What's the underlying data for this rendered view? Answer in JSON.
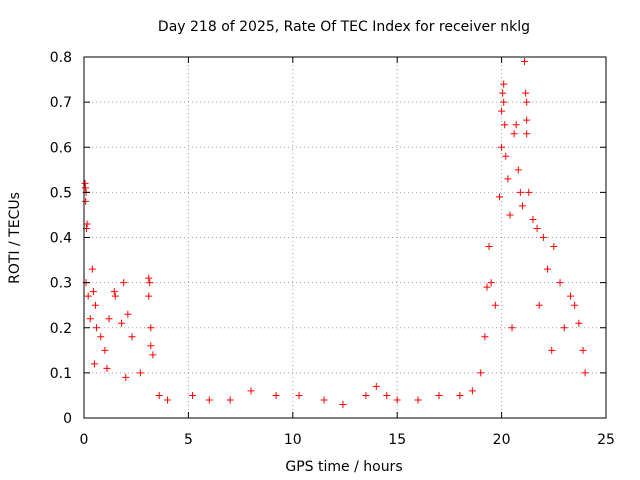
{
  "chart_data": {
    "type": "scatter",
    "title": "Day 218 of 2025, Rate Of TEC Index for receiver nklg",
    "xlabel": "GPS time / hours",
    "ylabel": "ROTI / TECUs",
    "xlim": [
      0,
      25
    ],
    "ylim": [
      0,
      0.8
    ],
    "xticks": [
      0,
      5,
      10,
      15,
      20,
      25
    ],
    "yticks": [
      0,
      0.1,
      0.2,
      0.3,
      0.4,
      0.5,
      0.6,
      0.7,
      0.8
    ],
    "xtick_labels": [
      "0",
      "5",
      "10",
      "15",
      "20",
      "25"
    ],
    "ytick_labels": [
      "0",
      "0.1",
      "0.2",
      "0.3",
      "0.4",
      "0.5",
      "0.6",
      "0.7",
      "0.8"
    ],
    "grid": true,
    "marker": "+",
    "color": "#ff0000",
    "series": [
      {
        "points": [
          [
            0.05,
            0.52
          ],
          [
            0.07,
            0.51
          ],
          [
            0.08,
            0.48
          ],
          [
            0.1,
            0.5
          ],
          [
            0.12,
            0.42
          ],
          [
            0.15,
            0.43
          ],
          [
            0.1,
            0.3
          ],
          [
            0.2,
            0.27
          ],
          [
            0.3,
            0.22
          ],
          [
            0.4,
            0.33
          ],
          [
            0.45,
            0.28
          ],
          [
            0.55,
            0.25
          ],
          [
            0.6,
            0.2
          ],
          [
            0.8,
            0.18
          ],
          [
            1.0,
            0.15
          ],
          [
            1.2,
            0.22
          ],
          [
            1.45,
            0.28
          ],
          [
            1.5,
            0.27
          ],
          [
            1.9,
            0.3
          ],
          [
            1.8,
            0.21
          ],
          [
            2.1,
            0.23
          ],
          [
            2.3,
            0.18
          ],
          [
            3.1,
            0.31
          ],
          [
            3.15,
            0.3
          ],
          [
            3.1,
            0.27
          ],
          [
            3.2,
            0.2
          ],
          [
            3.2,
            0.16
          ],
          [
            3.3,
            0.14
          ],
          [
            2.7,
            0.1
          ],
          [
            0.5,
            0.12
          ],
          [
            1.1,
            0.11
          ],
          [
            2.0,
            0.09
          ],
          [
            3.6,
            0.05
          ],
          [
            4.0,
            0.04
          ],
          [
            5.2,
            0.05
          ],
          [
            6.0,
            0.04
          ],
          [
            7.0,
            0.04
          ],
          [
            8.0,
            0.06
          ],
          [
            9.2,
            0.05
          ],
          [
            10.3,
            0.05
          ],
          [
            11.5,
            0.04
          ],
          [
            12.4,
            0.03
          ],
          [
            13.5,
            0.05
          ],
          [
            14.0,
            0.07
          ],
          [
            14.5,
            0.05
          ],
          [
            15.0,
            0.04
          ],
          [
            16.0,
            0.04
          ],
          [
            17.0,
            0.05
          ],
          [
            18.0,
            0.05
          ],
          [
            18.6,
            0.06
          ],
          [
            19.0,
            0.1
          ],
          [
            19.2,
            0.18
          ],
          [
            19.3,
            0.29
          ],
          [
            19.4,
            0.38
          ],
          [
            19.5,
            0.3
          ],
          [
            19.7,
            0.25
          ],
          [
            19.9,
            0.49
          ],
          [
            20.0,
            0.6
          ],
          [
            20.0,
            0.68
          ],
          [
            20.05,
            0.72
          ],
          [
            20.1,
            0.74
          ],
          [
            20.1,
            0.7
          ],
          [
            20.15,
            0.65
          ],
          [
            20.2,
            0.58
          ],
          [
            20.3,
            0.53
          ],
          [
            20.4,
            0.45
          ],
          [
            20.6,
            0.63
          ],
          [
            20.7,
            0.65
          ],
          [
            20.8,
            0.55
          ],
          [
            20.9,
            0.5
          ],
          [
            21.0,
            0.47
          ],
          [
            21.1,
            0.79
          ],
          [
            21.15,
            0.72
          ],
          [
            21.2,
            0.7
          ],
          [
            21.2,
            0.66
          ],
          [
            21.2,
            0.63
          ],
          [
            21.3,
            0.5
          ],
          [
            21.5,
            0.44
          ],
          [
            21.7,
            0.42
          ],
          [
            22.0,
            0.4
          ],
          [
            22.2,
            0.33
          ],
          [
            22.5,
            0.38
          ],
          [
            22.8,
            0.3
          ],
          [
            23.0,
            0.2
          ],
          [
            23.3,
            0.27
          ],
          [
            23.5,
            0.25
          ],
          [
            23.7,
            0.21
          ],
          [
            23.9,
            0.15
          ],
          [
            24.0,
            0.1
          ],
          [
            20.5,
            0.2
          ],
          [
            21.8,
            0.25
          ],
          [
            22.4,
            0.15
          ]
        ]
      }
    ]
  }
}
